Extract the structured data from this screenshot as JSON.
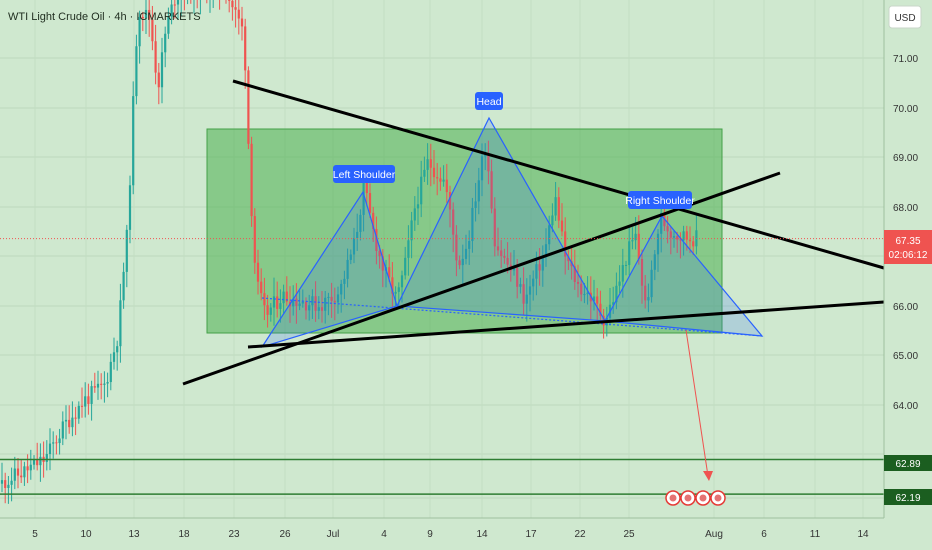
{
  "header": {
    "title": "WTI Light Crude Oil · 4h · ICMARKETS"
  },
  "axis": {
    "currency": "USD"
  },
  "chart_data": {
    "type": "candlestick",
    "title": "WTI Light Crude Oil · 4h · ICMARKETS",
    "y_ticks": [
      "71.00",
      "70.00",
      "69.00",
      "68.00",
      "66.00",
      "65.00",
      "64.00"
    ],
    "x_ticks": [
      "5",
      "10",
      "13",
      "18",
      "23",
      "26",
      "Jul",
      "4",
      "9",
      "14",
      "17",
      "22",
      "25",
      "Aug",
      "6",
      "11",
      "14"
    ],
    "ylim": [
      61.8,
      72.1
    ],
    "last_price": {
      "value": "67.35",
      "countdown": "02:06:12"
    },
    "levels": [
      {
        "value": "62.89",
        "price": 62.89
      },
      {
        "value": "62.19",
        "price": 62.19
      }
    ],
    "pattern_labels": {
      "left_shoulder": "Left Shoulder",
      "head": "Head",
      "right_shoulder": "Right Shoulder"
    },
    "colors": {
      "up": "#26a69a",
      "down": "#ef5350",
      "pattern": "#2962ff",
      "zone": "#4caf50",
      "background": "#cfe8cf"
    }
  }
}
